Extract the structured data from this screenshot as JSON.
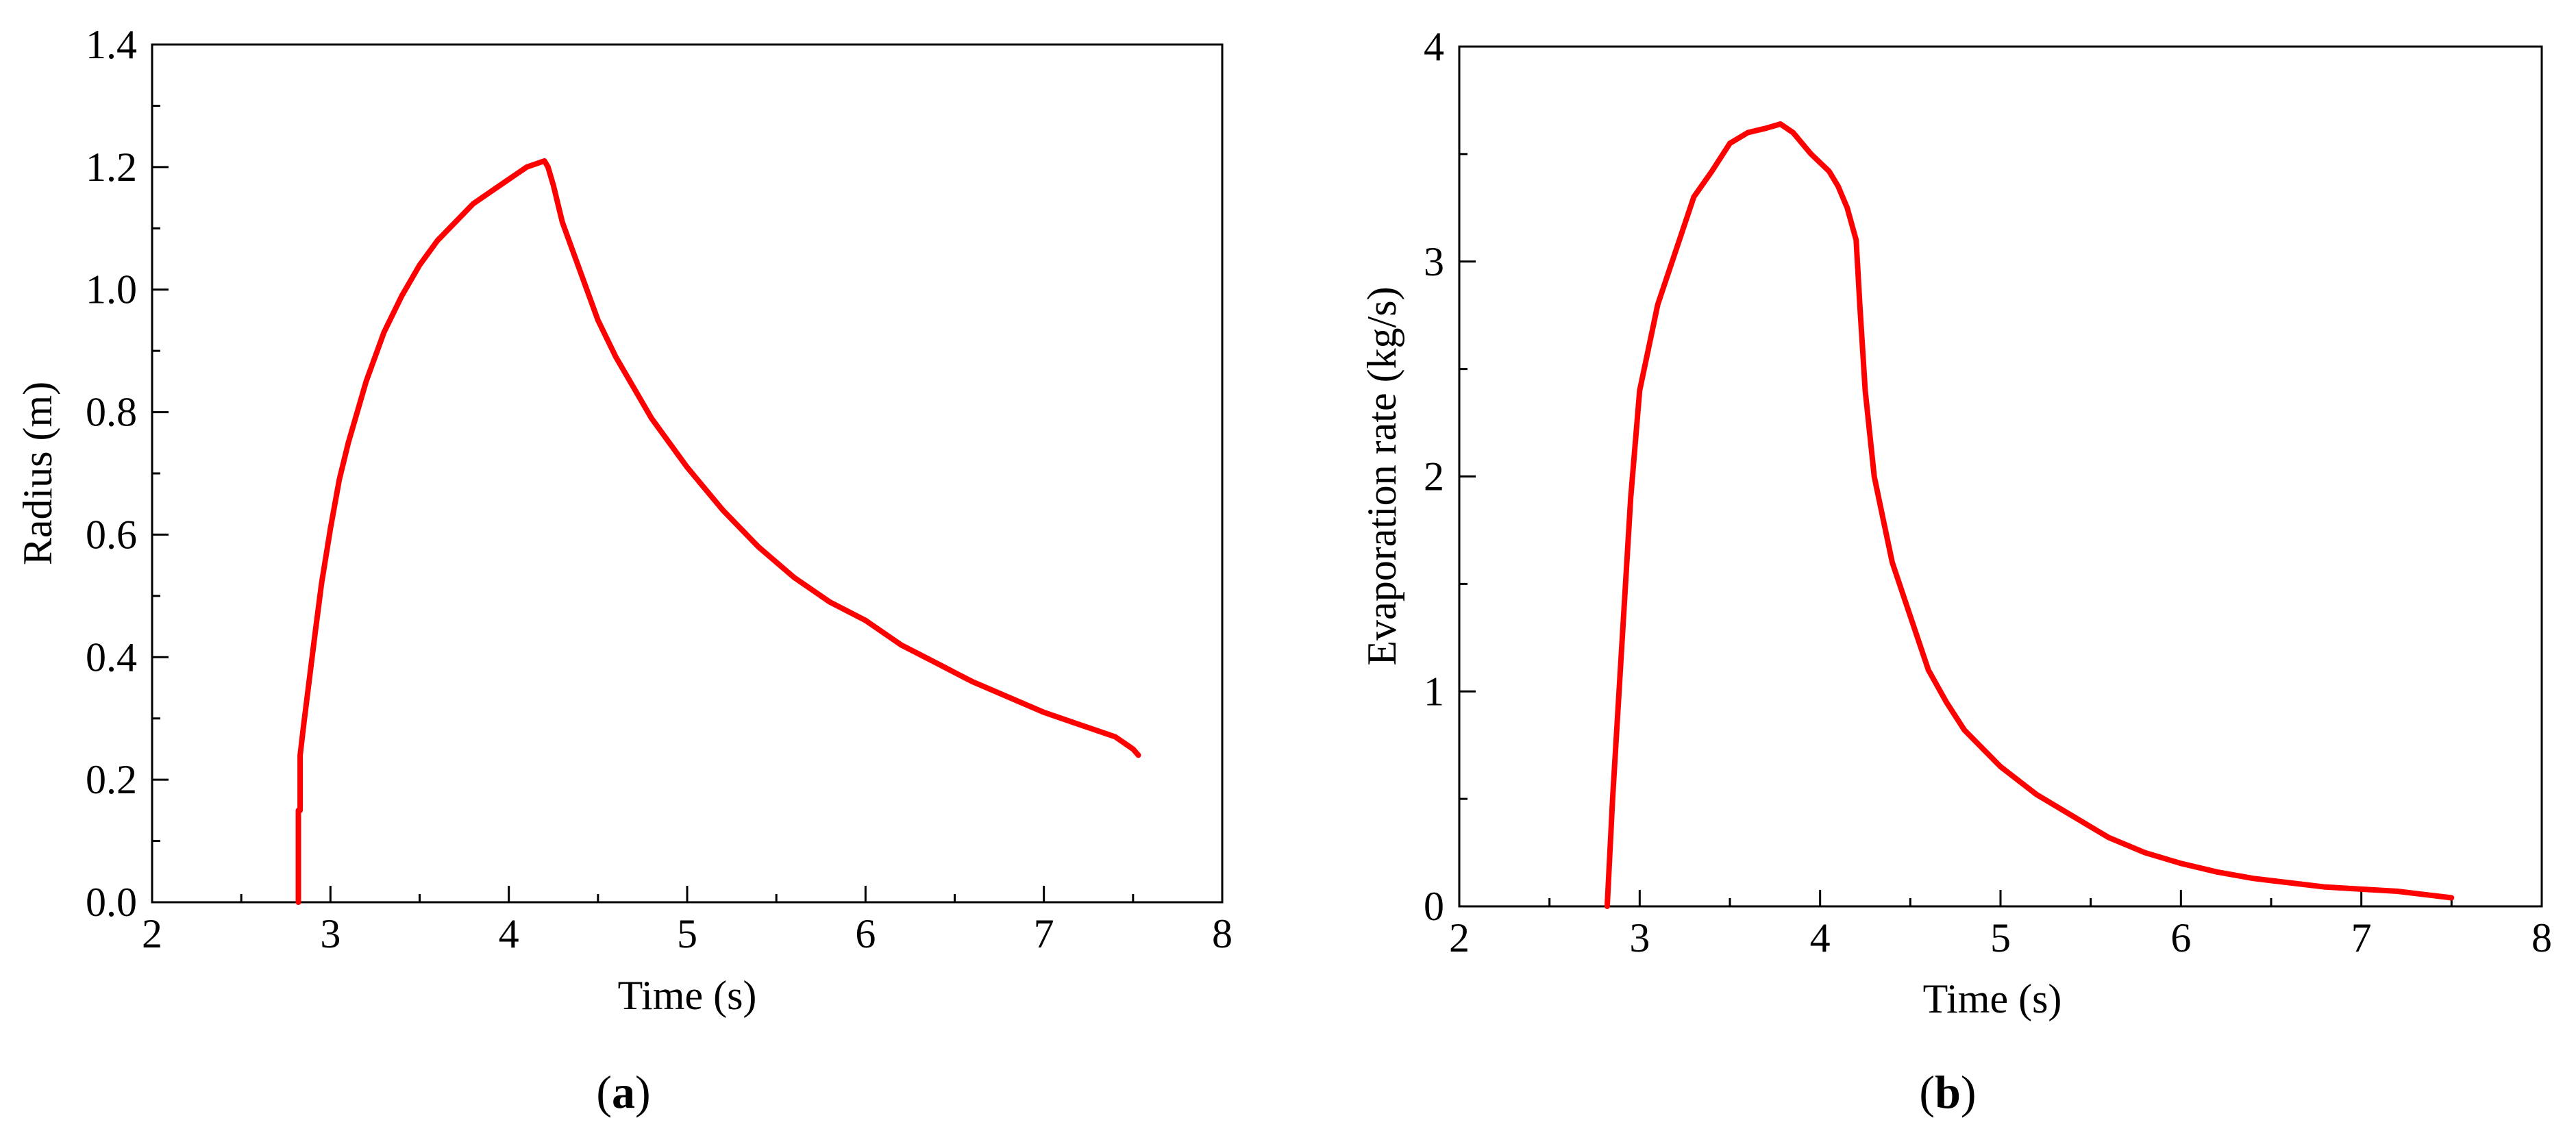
{
  "chart_data": [
    {
      "type": "line",
      "panel_label": "a",
      "xlabel": "Time (s)",
      "ylabel": "Radius (m)",
      "xlim": [
        2,
        8
      ],
      "ylim": [
        0,
        1.4
      ],
      "xticks": [
        "2",
        "3",
        "4",
        "5",
        "6",
        "7",
        "8"
      ],
      "yticks": [
        "0.0",
        "0.2",
        "0.4",
        "0.6",
        "0.8",
        "1.0",
        "1.2",
        "1.4"
      ],
      "grid": false,
      "line_color": "#ff0000",
      "series": [
        {
          "x": [
            2.82,
            2.82,
            2.83,
            2.83,
            2.85,
            2.88,
            2.91,
            2.95,
            3.0,
            3.05,
            3.1,
            3.15,
            3.2,
            3.3,
            3.4,
            3.5,
            3.6,
            3.7,
            3.8,
            3.9,
            4.0,
            4.1,
            4.15,
            4.2,
            4.22,
            4.25,
            4.3,
            4.4,
            4.5,
            4.6,
            4.7,
            4.8,
            5.0,
            5.2,
            5.4,
            5.6,
            5.8,
            6.0,
            6.2,
            6.4,
            6.6,
            6.8,
            7.0,
            7.2,
            7.4,
            7.5,
            7.53
          ],
          "y": [
            0.0,
            0.15,
            0.15,
            0.24,
            0.29,
            0.36,
            0.43,
            0.52,
            0.61,
            0.69,
            0.75,
            0.8,
            0.85,
            0.93,
            0.99,
            1.04,
            1.08,
            1.11,
            1.14,
            1.16,
            1.18,
            1.2,
            1.205,
            1.21,
            1.2,
            1.17,
            1.11,
            1.03,
            0.95,
            0.89,
            0.84,
            0.79,
            0.71,
            0.64,
            0.58,
            0.53,
            0.49,
            0.46,
            0.42,
            0.39,
            0.36,
            0.335,
            0.31,
            0.29,
            0.27,
            0.25,
            0.24
          ]
        }
      ]
    },
    {
      "type": "line",
      "panel_label": "b",
      "xlabel": "Time (s)",
      "ylabel": "Evaporation rate (kg/s)",
      "xlim": [
        2,
        8
      ],
      "ylim": [
        0,
        4
      ],
      "xticks": [
        "2",
        "3",
        "4",
        "5",
        "6",
        "7",
        "8"
      ],
      "yticks": [
        "0",
        "1",
        "2",
        "3",
        "4"
      ],
      "grid": false,
      "line_color": "#ff0000",
      "series": [
        {
          "x": [
            2.82,
            2.85,
            2.9,
            2.95,
            3.0,
            3.05,
            3.1,
            3.2,
            3.3,
            3.4,
            3.5,
            3.6,
            3.7,
            3.78,
            3.85,
            3.95,
            4.05,
            4.1,
            4.15,
            4.2,
            4.22,
            4.25,
            4.3,
            4.35,
            4.4,
            4.5,
            4.6,
            4.7,
            4.8,
            5.0,
            5.2,
            5.4,
            5.6,
            5.8,
            6.0,
            6.2,
            6.4,
            6.6,
            6.8,
            7.0,
            7.2,
            7.4,
            7.5
          ],
          "y": [
            0.0,
            0.5,
            1.2,
            1.9,
            2.4,
            2.6,
            2.8,
            3.05,
            3.3,
            3.42,
            3.55,
            3.6,
            3.62,
            3.64,
            3.6,
            3.5,
            3.42,
            3.35,
            3.25,
            3.1,
            2.8,
            2.4,
            2.0,
            1.8,
            1.6,
            1.35,
            1.1,
            0.95,
            0.82,
            0.65,
            0.52,
            0.42,
            0.32,
            0.25,
            0.2,
            0.16,
            0.13,
            0.11,
            0.09,
            0.08,
            0.07,
            0.05,
            0.04
          ]
        }
      ]
    }
  ]
}
